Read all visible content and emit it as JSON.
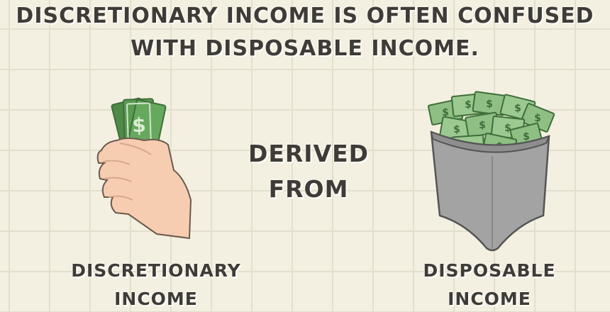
{
  "headline": {
    "line1": "DISCRETIONARY INCOME IS OFTEN CONFUSED",
    "line2": "WITH DISPOSABLE INCOME."
  },
  "relation": {
    "line1": "DERIVED",
    "line2": "FROM"
  },
  "left_label": {
    "line1": "DISCRETIONARY",
    "line2": "INCOME"
  },
  "right_label": {
    "line1": "DISPOSABLE",
    "line2": "INCOME"
  },
  "colors": {
    "background": "#f3f0e1",
    "grid": "#e3dfcd",
    "text": "#3f3c38",
    "money": "#5f9a57",
    "skin": "#f6cdb1",
    "bag": "#a3a3a3"
  },
  "icons": [
    "hand-holding-cash-icon",
    "money-bag-icon"
  ]
}
